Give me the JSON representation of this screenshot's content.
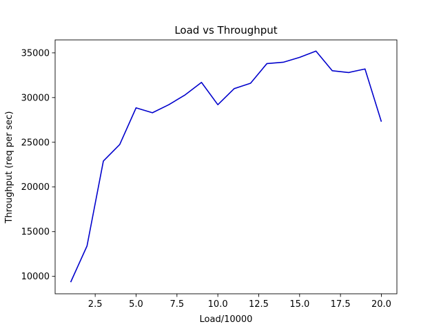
{
  "chart_data": {
    "type": "line",
    "title": "Load vs Throughput",
    "xlabel": "Load/10000",
    "ylabel": "Throughput (req per sec)",
    "xlim": [
      0.05,
      20.95
    ],
    "ylim": [
      8050,
      36450
    ],
    "xticks": [
      2.5,
      5.0,
      7.5,
      10.0,
      12.5,
      15.0,
      17.5,
      20.0
    ],
    "xtick_labels": [
      "2.5",
      "5.0",
      "7.5",
      "10.0",
      "12.5",
      "15.0",
      "17.5",
      "20.0"
    ],
    "yticks": [
      10000,
      15000,
      20000,
      25000,
      30000,
      35000
    ],
    "ytick_labels": [
      "10000",
      "15000",
      "20000",
      "25000",
      "30000",
      "35000"
    ],
    "grid": false,
    "legend": "none",
    "line_color": "#0000cc",
    "series": [
      {
        "x": [
          1,
          2,
          3,
          4,
          5,
          6,
          7,
          8,
          9,
          10,
          11,
          12,
          13,
          14,
          15,
          16,
          17,
          18,
          19,
          20
        ],
        "y": [
          9350,
          13400,
          22900,
          24750,
          28850,
          28300,
          29200,
          30300,
          31700,
          29200,
          31000,
          31600,
          33800,
          33950,
          34500,
          35200,
          33000,
          32800,
          33200,
          27300
        ]
      }
    ]
  }
}
